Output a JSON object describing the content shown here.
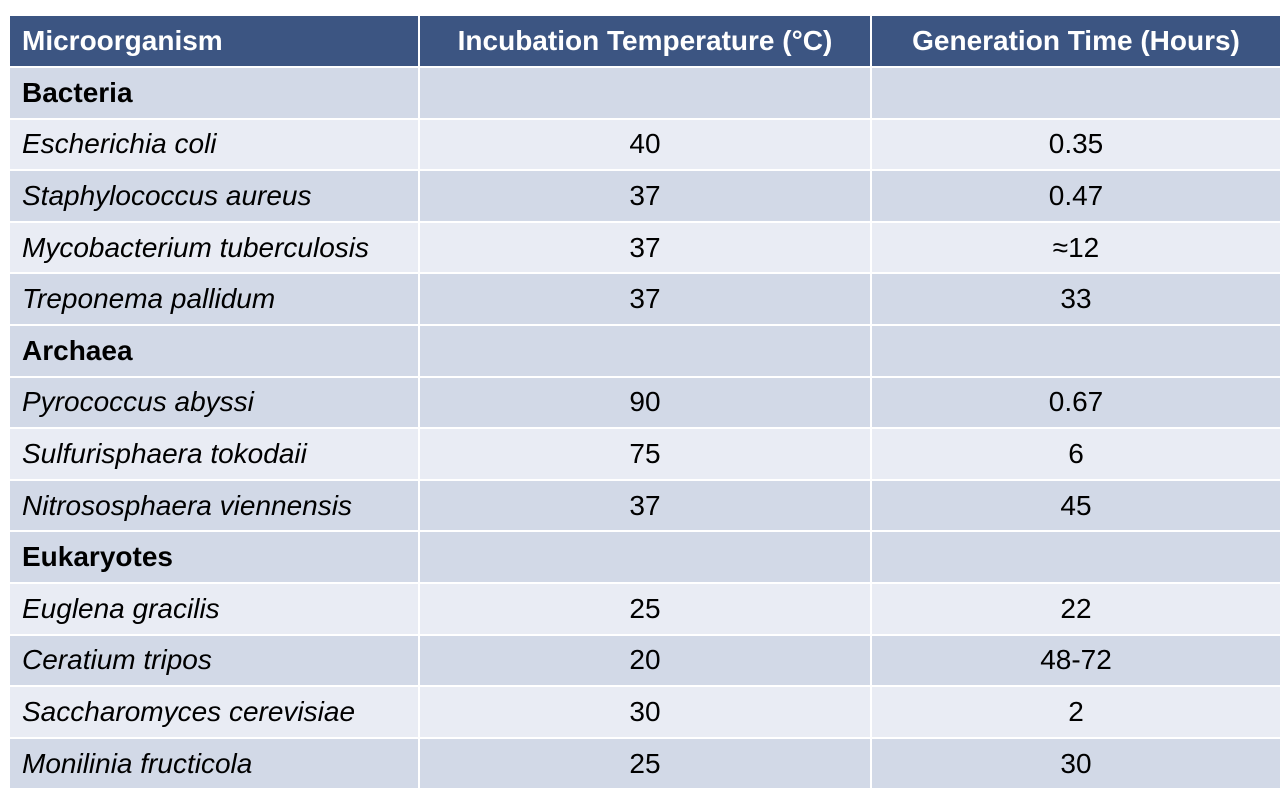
{
  "table": {
    "headers": {
      "organism": "Microorganism",
      "temperature": "Incubation Temperature (°C)",
      "generation": "Generation Time (Hours)"
    },
    "rows": [
      {
        "type": "group",
        "label": "Bacteria"
      },
      {
        "type": "item",
        "organism": "Escherichia coli",
        "temperature": "40",
        "generation": "0.35"
      },
      {
        "type": "item",
        "organism": "Staphylococcus aureus",
        "temperature": "37",
        "generation": "0.47"
      },
      {
        "type": "item",
        "organism": "Mycobacterium tuberculosis",
        "temperature": "37",
        "generation": "≈12"
      },
      {
        "type": "item",
        "organism": "Treponema pallidum",
        "temperature": "37",
        "generation": "33"
      },
      {
        "type": "group",
        "label": "Archaea"
      },
      {
        "type": "item",
        "organism": "Pyrococcus abyssi",
        "temperature": "90",
        "generation": "0.67"
      },
      {
        "type": "item",
        "organism": "Sulfurisphaera tokodaii",
        "temperature": "75",
        "generation": "6"
      },
      {
        "type": "item",
        "organism": "Nitrososphaera viennensis",
        "temperature": "37",
        "generation": "45"
      },
      {
        "type": "group",
        "label": "Eukaryotes"
      },
      {
        "type": "item",
        "organism": "Euglena gracilis",
        "temperature": "25",
        "generation": "22"
      },
      {
        "type": "item",
        "organism": "Ceratium tripos",
        "temperature": "20",
        "generation": "48-72"
      },
      {
        "type": "item",
        "organism": "Saccharomyces cerevisiae",
        "temperature": "30",
        "generation": "2"
      },
      {
        "type": "item",
        "organism": "Monilinia fructicola",
        "temperature": "25",
        "generation": "30"
      }
    ]
  },
  "colors": {
    "header_bg": "#3c5582",
    "row_dark": "#d2d9e7",
    "row_light": "#e9ecf4"
  }
}
